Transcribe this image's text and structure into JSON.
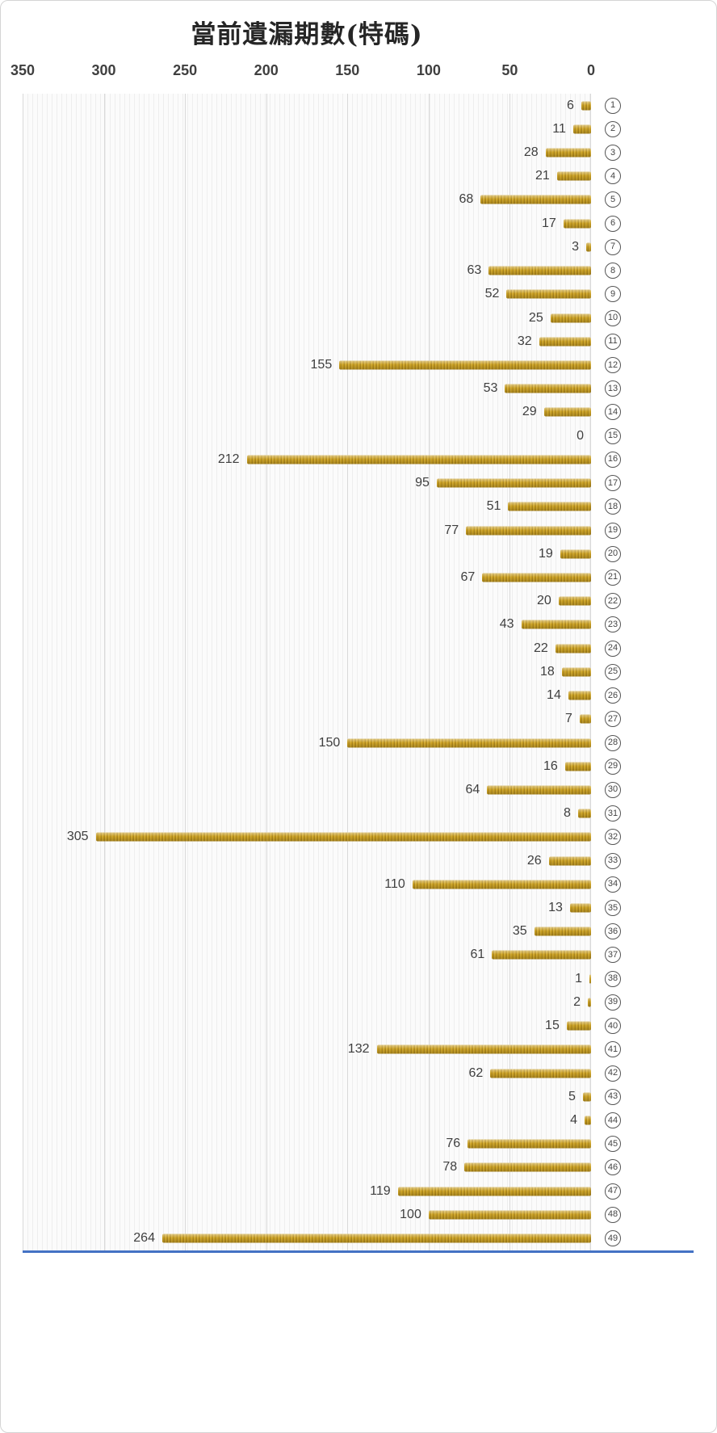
{
  "chart_data": {
    "type": "bar",
    "orientation": "horizontal",
    "anchored": "right",
    "title": "當前遺漏期數(特碼)",
    "xlabel": "",
    "ylabel": "",
    "xlim": [
      0,
      350
    ],
    "axis_reversed": true,
    "axis_ticks": [
      350,
      300,
      250,
      200,
      150,
      100,
      50,
      0
    ],
    "grid": true,
    "legend": "none",
    "bar_color": "#C79D22",
    "bar_texture": "vertical-ribbed-gold",
    "bottom_axis_line_color": "#4472C4",
    "category_style": "circled-number",
    "categories": [
      "1",
      "2",
      "3",
      "4",
      "5",
      "6",
      "7",
      "8",
      "9",
      "10",
      "11",
      "12",
      "13",
      "14",
      "15",
      "16",
      "17",
      "18",
      "19",
      "20",
      "21",
      "22",
      "23",
      "24",
      "25",
      "26",
      "27",
      "28",
      "29",
      "30",
      "31",
      "32",
      "33",
      "34",
      "35",
      "36",
      "37",
      "38",
      "39",
      "40",
      "41",
      "42",
      "43",
      "44",
      "45",
      "46",
      "47",
      "48",
      "49"
    ],
    "values": [
      6,
      11,
      28,
      21,
      68,
      17,
      3,
      63,
      52,
      25,
      32,
      155,
      53,
      29,
      0,
      212,
      95,
      51,
      77,
      19,
      67,
      20,
      43,
      22,
      18,
      14,
      7,
      150,
      16,
      64,
      8,
      305,
      26,
      110,
      13,
      35,
      61,
      1,
      2,
      15,
      132,
      62,
      5,
      4,
      76,
      78,
      119,
      100,
      264
    ]
  }
}
